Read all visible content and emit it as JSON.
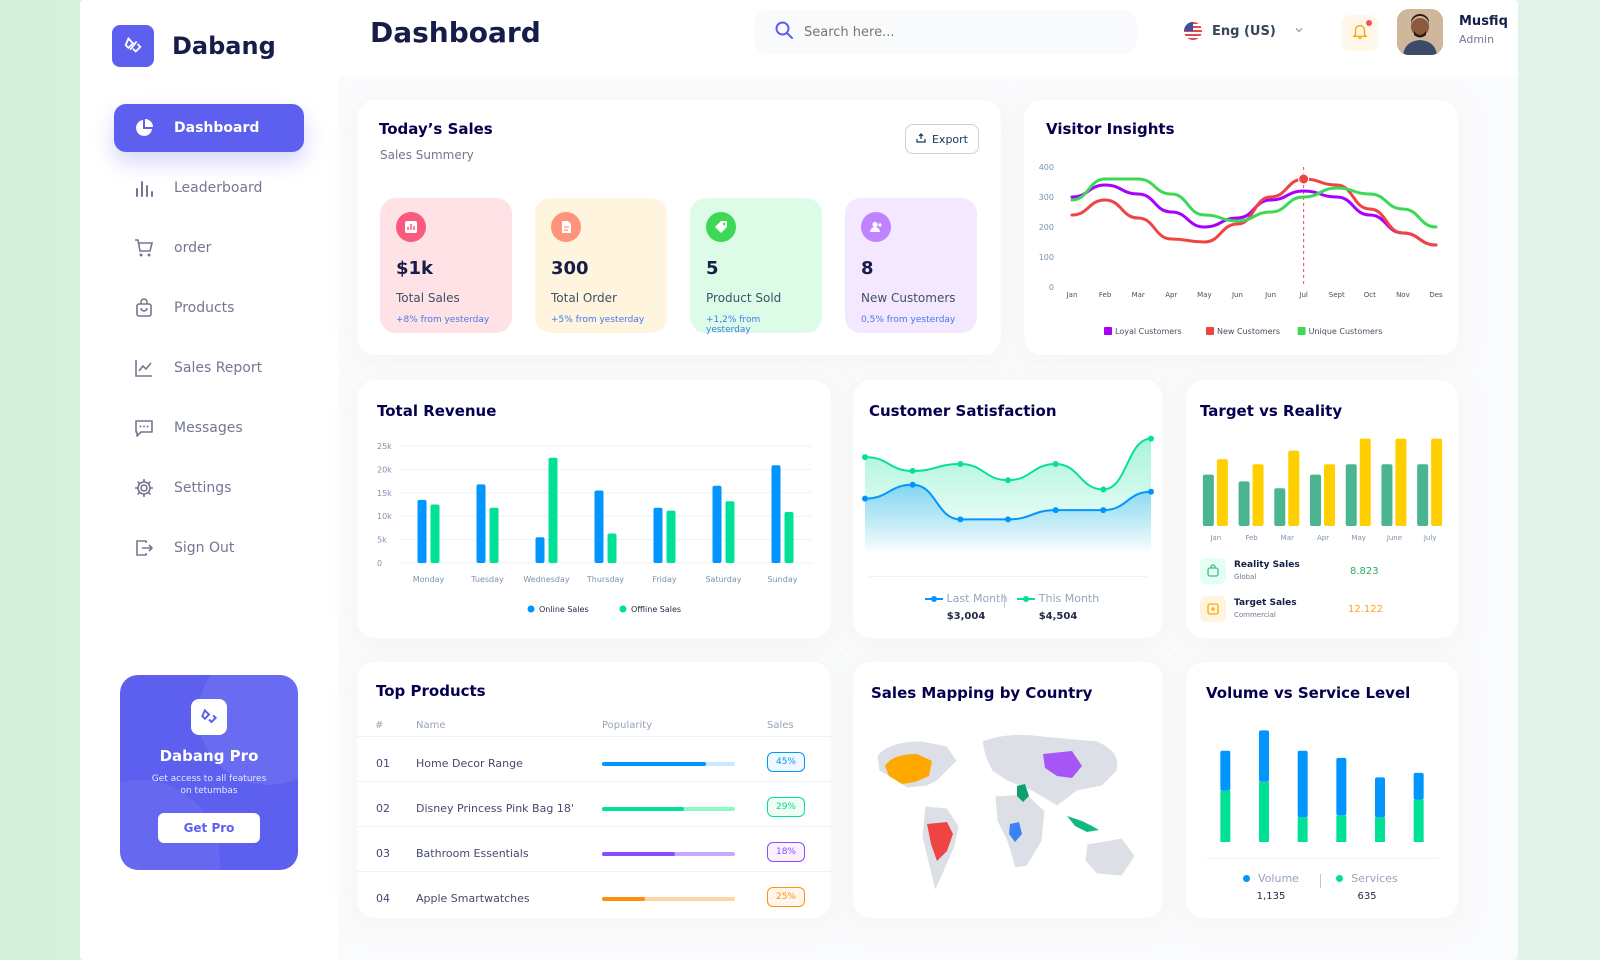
{
  "brand": {
    "name": "Dabang"
  },
  "sidebar": {
    "items": [
      {
        "label": "Dashboard",
        "icon": "pie-chart-icon",
        "active": true
      },
      {
        "label": "Leaderboard",
        "icon": "bar-chart-icon"
      },
      {
        "label": "order",
        "icon": "cart-icon"
      },
      {
        "label": "Products",
        "icon": "shopping-bag-icon"
      },
      {
        "label": "Sales Report",
        "icon": "line-chart-icon"
      },
      {
        "label": "Messages",
        "icon": "message-icon"
      },
      {
        "label": "Settings",
        "icon": "gear-icon"
      },
      {
        "label": "Sign Out",
        "icon": "sign-out-icon"
      }
    ],
    "promo": {
      "title": "Dabang Pro",
      "subtitle": "Get access to all features on tetumbas",
      "button": "Get Pro"
    }
  },
  "header": {
    "title": "Dashboard",
    "search_placeholder": "Search here...",
    "language": "Eng (US)",
    "user": {
      "name": "Musfiq",
      "role": "Admin"
    }
  },
  "colors": {
    "accent": "#5d5fef",
    "blue": "#0095ff",
    "green": "#00e096",
    "purple": "#a700ff",
    "red": "#ef4444",
    "lime": "#3cd856",
    "gold": "#ffcf00",
    "teal": "#4ab58e"
  },
  "todays_sales": {
    "title": "Today’s Sales",
    "subtitle": "Sales Summery",
    "export_label": "Export",
    "kpis": [
      {
        "value": "$1k",
        "label": "Total Sales",
        "delta": "+8% from yesterday",
        "bg": "#ffe2e5",
        "iconColor": "#fa5a7d",
        "icon": "chart-icon"
      },
      {
        "value": "300",
        "label": "Total Order",
        "delta": "+5% from yesterday",
        "bg": "#fff4de",
        "iconColor": "#ff947a",
        "icon": "document-icon"
      },
      {
        "value": "5",
        "label": "Product Sold",
        "delta": "+1,2% from yesterday",
        "bg": "#dcfce7",
        "iconColor": "#3cd856",
        "icon": "tag-icon"
      },
      {
        "value": "8",
        "label": "New Customers",
        "delta": "0,5% from yesterday",
        "bg": "#f3e8ff",
        "iconColor": "#bf83ff",
        "icon": "user-add-icon"
      }
    ]
  },
  "visitor_insights": {
    "title": "Visitor Insights"
  },
  "total_revenue": {
    "title": "Total Revenue"
  },
  "customer_satisfaction": {
    "title": "Customer Satisfaction",
    "last_month_label": "Last Month",
    "last_month_value": "$3,004",
    "this_month_label": "This Month",
    "this_month_value": "$4,504"
  },
  "target_vs_reality": {
    "title": "Target vs Reality",
    "reality": {
      "label": "Reality Sales",
      "sub": "Global",
      "value": "8.823"
    },
    "target": {
      "label": "Target Sales",
      "sub": "Commercial",
      "value": "12.122"
    }
  },
  "top_products": {
    "title": "Top Products",
    "headers": [
      "#",
      "Name",
      "Popularity",
      "Sales"
    ],
    "rows": [
      {
        "num": "01",
        "name": "Home Decor Range",
        "popularity": 0.78,
        "sales": "45%",
        "color": "#0095ff",
        "track": "#cde7ff"
      },
      {
        "num": "02",
        "name": "Disney Princess Pink Bag 18'",
        "popularity": 0.62,
        "sales": "29%",
        "color": "#00e096",
        "track": "#8cfac7"
      },
      {
        "num": "03",
        "name": "Bathroom Essentials",
        "popularity": 0.55,
        "sales": "18%",
        "color": "#884dff",
        "track": "#c5a8ff"
      },
      {
        "num": "04",
        "name": "Apple Smartwatches",
        "popularity": 0.32,
        "sales": "25%",
        "color": "#ff8f0d",
        "track": "#ffd5a4"
      }
    ]
  },
  "sales_mapping": {
    "title": "Sales Mapping by Country"
  },
  "volume_service": {
    "title": "Volume vs Service Level",
    "volume_label": "Volume",
    "volume_value": "1,135",
    "services_label": "Services",
    "services_value": "635"
  },
  "chart_data": [
    {
      "type": "line",
      "title": "Visitor Insights",
      "categories": [
        "Jan",
        "Feb",
        "Mar",
        "Apr",
        "May",
        "Jun",
        "Jun",
        "Jul",
        "Sept",
        "Oct",
        "Nov",
        "Des"
      ],
      "yticks": [
        0,
        100,
        200,
        300,
        400
      ],
      "ylim": [
        0,
        400
      ],
      "series": [
        {
          "name": "Loyal Customers",
          "color": "#a700ff",
          "values": [
            300,
            340,
            310,
            250,
            200,
            230,
            290,
            320,
            300,
            240,
            180,
            140
          ]
        },
        {
          "name": "New Customers",
          "color": "#ef4444",
          "values": [
            240,
            290,
            230,
            160,
            150,
            210,
            300,
            360,
            340,
            260,
            180,
            140
          ]
        },
        {
          "name": "Unique Customers",
          "color": "#3cd856",
          "values": [
            290,
            360,
            360,
            310,
            240,
            220,
            250,
            300,
            330,
            310,
            260,
            200
          ]
        }
      ],
      "legend": "bottom"
    },
    {
      "type": "bar",
      "title": "Total Revenue",
      "categories": [
        "Monday",
        "Tuesday",
        "Wednesday",
        "Thursday",
        "Friday",
        "Saturday",
        "Sunday"
      ],
      "yticks": [
        "0",
        "5k",
        "10k",
        "15k",
        "20k",
        "25k"
      ],
      "ylim": [
        0,
        25000
      ],
      "series": [
        {
          "name": "Online Sales",
          "color": "#0095ff",
          "values": [
            13500,
            16800,
            5500,
            15500,
            11800,
            16500,
            20900
          ]
        },
        {
          "name": "Offline Sales",
          "color": "#00e096",
          "values": [
            12500,
            11800,
            22500,
            6300,
            11200,
            13200,
            10900
          ]
        }
      ],
      "legend": "bottom"
    },
    {
      "type": "area",
      "title": "Customer Satisfaction",
      "x": [
        1,
        2,
        3,
        4,
        5,
        6,
        7
      ],
      "series": [
        {
          "name": "Last Month",
          "color": "#0095ff",
          "values": [
            2.4,
            3.0,
            1.5,
            1.5,
            1.9,
            1.9,
            2.7
          ]
        },
        {
          "name": "This Month",
          "color": "#07e098",
          "values": [
            4.2,
            3.6,
            3.9,
            3.2,
            3.9,
            2.8,
            5.0
          ]
        }
      ]
    },
    {
      "type": "bar",
      "title": "Target vs Reality",
      "categories": [
        "Jan",
        "Feb",
        "Mar",
        "Apr",
        "May",
        "June",
        "July"
      ],
      "series": [
        {
          "name": "Reality Sales",
          "color": "#4ab58e",
          "values": [
            6.0,
            5.2,
            4.4,
            6.0,
            7.2,
            7.2,
            7.2
          ]
        },
        {
          "name": "Target Sales",
          "color": "#ffcf00",
          "values": [
            7.8,
            7.2,
            8.8,
            7.2,
            10.2,
            10.2,
            10.2
          ]
        }
      ]
    },
    {
      "type": "bar",
      "title": "Volume vs Service Level",
      "categories": [
        "1",
        "2",
        "3",
        "4",
        "5",
        "6"
      ],
      "stacked": true,
      "series": [
        {
          "name": "Volume",
          "color": "#0095ff",
          "values": [
            45,
            58,
            75,
            65,
            45,
            30
          ]
        },
        {
          "name": "Services",
          "color": "#00e096",
          "values": [
            58,
            68,
            28,
            30,
            28,
            48
          ]
        }
      ]
    }
  ]
}
